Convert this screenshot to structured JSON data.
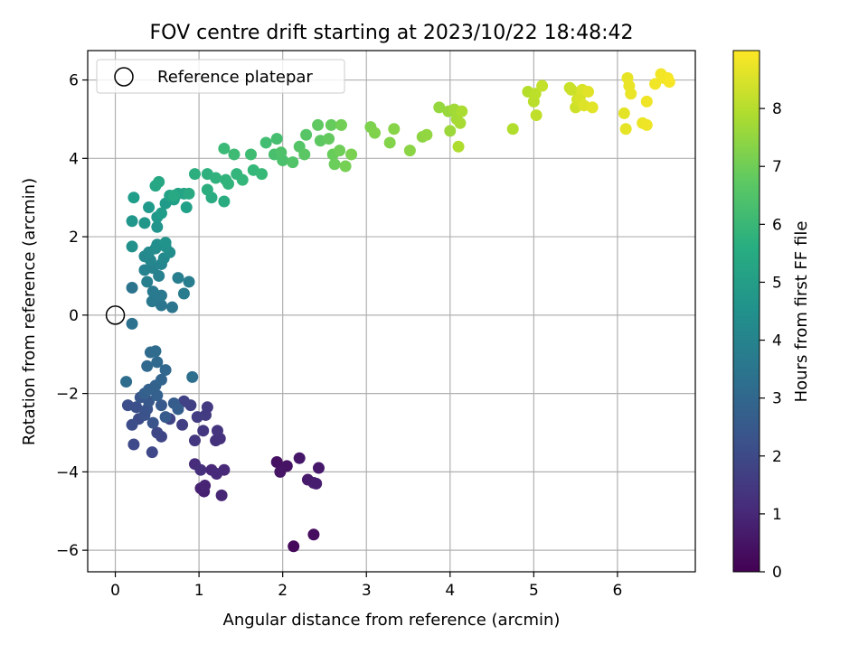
{
  "chart_data": {
    "type": "scatter",
    "title": "FOV centre drift starting at 2023/10/22 18:48:42",
    "xlabel": "Angular distance from reference (arcmin)",
    "ylabel": "Rotation from reference (arcmin)",
    "colorbar_label": "Hours from first FF file",
    "xlim": [
      -0.33,
      6.93
    ],
    "ylim": [
      -6.55,
      6.75
    ],
    "xticks": [
      0,
      1,
      2,
      3,
      4,
      5,
      6
    ],
    "yticks": [
      -6,
      -4,
      -2,
      0,
      2,
      4,
      6
    ],
    "colorbar_ticks": [
      0,
      1,
      2,
      3,
      4,
      5,
      6,
      7,
      8
    ],
    "colorbar_range": [
      0,
      9.0
    ],
    "colormap": "viridis",
    "grid": true,
    "legend": {
      "placement": "top-left",
      "entries": [
        {
          "label": "Reference platepar",
          "marker": "open-circle"
        }
      ]
    },
    "reference_point": {
      "x": 0,
      "y": 0
    },
    "points": [
      {
        "x": 2.13,
        "y": -5.9,
        "h": 0.2
      },
      {
        "x": 2.37,
        "y": -5.6,
        "h": 0.3
      },
      {
        "x": 1.93,
        "y": -3.75,
        "h": 0.4
      },
      {
        "x": 2.05,
        "y": -3.85,
        "h": 0.45
      },
      {
        "x": 1.97,
        "y": -4.0,
        "h": 0.5
      },
      {
        "x": 2.2,
        "y": -3.65,
        "h": 0.55
      },
      {
        "x": 2.43,
        "y": -3.9,
        "h": 0.6
      },
      {
        "x": 2.3,
        "y": -4.2,
        "h": 0.65
      },
      {
        "x": 2.37,
        "y": -4.28,
        "h": 0.7
      },
      {
        "x": 2.4,
        "y": -4.3,
        "h": 0.75
      },
      {
        "x": 1.06,
        "y": -4.5,
        "h": 0.8
      },
      {
        "x": 1.02,
        "y": -4.42,
        "h": 0.85
      },
      {
        "x": 1.07,
        "y": -4.35,
        "h": 0.9
      },
      {
        "x": 1.27,
        "y": -4.6,
        "h": 0.95
      },
      {
        "x": 1.15,
        "y": -3.95,
        "h": 1.0
      },
      {
        "x": 1.3,
        "y": -3.95,
        "h": 1.05
      },
      {
        "x": 1.21,
        "y": -4.05,
        "h": 1.1
      },
      {
        "x": 0.95,
        "y": -3.8,
        "h": 1.15
      },
      {
        "x": 1.02,
        "y": -3.95,
        "h": 1.2
      },
      {
        "x": 1.25,
        "y": -3.15,
        "h": 1.25
      },
      {
        "x": 1.2,
        "y": -3.2,
        "h": 1.3
      },
      {
        "x": 1.22,
        "y": -2.95,
        "h": 1.35
      },
      {
        "x": 0.95,
        "y": -3.2,
        "h": 1.4
      },
      {
        "x": 1.05,
        "y": -2.95,
        "h": 1.45
      },
      {
        "x": 1.1,
        "y": -2.35,
        "h": 1.5
      },
      {
        "x": 1.08,
        "y": -2.55,
        "h": 1.55
      },
      {
        "x": 0.98,
        "y": -2.6,
        "h": 1.6
      },
      {
        "x": 0.8,
        "y": -2.8,
        "h": 1.65
      },
      {
        "x": 0.9,
        "y": -2.3,
        "h": 1.7
      },
      {
        "x": 0.82,
        "y": -2.2,
        "h": 1.75
      },
      {
        "x": 0.65,
        "y": -2.65,
        "h": 1.8
      },
      {
        "x": 0.55,
        "y": -3.1,
        "h": 1.85
      },
      {
        "x": 0.5,
        "y": -3.0,
        "h": 1.9
      },
      {
        "x": 0.44,
        "y": -3.5,
        "h": 1.95
      },
      {
        "x": 0.22,
        "y": -3.3,
        "h": 2.0
      },
      {
        "x": 0.28,
        "y": -2.65,
        "h": 2.05
      },
      {
        "x": 0.2,
        "y": -2.8,
        "h": 2.1
      },
      {
        "x": 0.15,
        "y": -2.3,
        "h": 2.15
      },
      {
        "x": 0.25,
        "y": -2.35,
        "h": 2.2
      },
      {
        "x": 0.35,
        "y": -2.55,
        "h": 2.25
      },
      {
        "x": 0.38,
        "y": -2.4,
        "h": 2.3
      },
      {
        "x": 0.45,
        "y": -2.75,
        "h": 2.35
      },
      {
        "x": 0.3,
        "y": -2.1,
        "h": 2.4
      },
      {
        "x": 0.4,
        "y": -2.2,
        "h": 2.45
      },
      {
        "x": 0.55,
        "y": -2.3,
        "h": 2.5
      },
      {
        "x": 0.6,
        "y": -2.6,
        "h": 2.55
      },
      {
        "x": 0.7,
        "y": -2.25,
        "h": 2.6
      },
      {
        "x": 0.75,
        "y": -2.4,
        "h": 2.65
      },
      {
        "x": 0.35,
        "y": -2.0,
        "h": 2.7
      },
      {
        "x": 0.5,
        "y": -2.05,
        "h": 2.75
      },
      {
        "x": 0.4,
        "y": -1.9,
        "h": 2.8
      },
      {
        "x": 0.48,
        "y": -1.8,
        "h": 2.85
      },
      {
        "x": 0.55,
        "y": -1.65,
        "h": 2.9
      },
      {
        "x": 0.6,
        "y": -1.4,
        "h": 2.95
      },
      {
        "x": 0.38,
        "y": -1.3,
        "h": 3.0
      },
      {
        "x": 0.5,
        "y": -1.2,
        "h": 3.05
      },
      {
        "x": 0.42,
        "y": -0.95,
        "h": 3.1
      },
      {
        "x": 0.48,
        "y": -0.92,
        "h": 3.15
      },
      {
        "x": 0.13,
        "y": -1.7,
        "h": 3.2
      },
      {
        "x": 0.92,
        "y": -1.58,
        "h": 3.25
      },
      {
        "x": 0.2,
        "y": -0.22,
        "h": 3.35
      },
      {
        "x": 0.2,
        "y": 0.7,
        "h": 3.45
      },
      {
        "x": 0.68,
        "y": 0.2,
        "h": 3.5
      },
      {
        "x": 0.55,
        "y": 0.25,
        "h": 3.55
      },
      {
        "x": 0.44,
        "y": 0.35,
        "h": 3.6
      },
      {
        "x": 0.55,
        "y": 0.5,
        "h": 3.65
      },
      {
        "x": 0.45,
        "y": 0.6,
        "h": 3.7
      },
      {
        "x": 0.82,
        "y": 0.55,
        "h": 3.75
      },
      {
        "x": 0.88,
        "y": 0.85,
        "h": 3.8
      },
      {
        "x": 0.75,
        "y": 0.95,
        "h": 3.85
      },
      {
        "x": 0.38,
        "y": 0.85,
        "h": 3.9
      },
      {
        "x": 0.52,
        "y": 1.0,
        "h": 3.95
      },
      {
        "x": 0.35,
        "y": 1.15,
        "h": 4.0
      },
      {
        "x": 0.45,
        "y": 1.2,
        "h": 4.05
      },
      {
        "x": 0.55,
        "y": 1.3,
        "h": 4.1
      },
      {
        "x": 0.42,
        "y": 1.4,
        "h": 4.15
      },
      {
        "x": 0.35,
        "y": 1.5,
        "h": 4.2
      },
      {
        "x": 0.58,
        "y": 1.45,
        "h": 4.25
      },
      {
        "x": 0.4,
        "y": 1.6,
        "h": 4.3
      },
      {
        "x": 0.48,
        "y": 1.7,
        "h": 4.35
      },
      {
        "x": 0.65,
        "y": 1.6,
        "h": 4.4
      },
      {
        "x": 0.5,
        "y": 1.8,
        "h": 4.45
      },
      {
        "x": 0.6,
        "y": 1.75,
        "h": 4.5
      },
      {
        "x": 0.2,
        "y": 1.75,
        "h": 4.55
      },
      {
        "x": 0.6,
        "y": 1.85,
        "h": 4.6
      },
      {
        "x": 0.5,
        "y": 2.25,
        "h": 4.65
      },
      {
        "x": 0.2,
        "y": 2.4,
        "h": 4.7
      },
      {
        "x": 0.35,
        "y": 2.35,
        "h": 4.75
      },
      {
        "x": 0.5,
        "y": 2.5,
        "h": 4.8
      },
      {
        "x": 0.4,
        "y": 2.75,
        "h": 4.85
      },
      {
        "x": 0.6,
        "y": 2.85,
        "h": 4.9
      },
      {
        "x": 0.55,
        "y": 2.6,
        "h": 4.95
      },
      {
        "x": 0.22,
        "y": 3.0,
        "h": 5.0
      },
      {
        "x": 0.7,
        "y": 2.95,
        "h": 5.05
      },
      {
        "x": 0.85,
        "y": 2.75,
        "h": 5.1
      },
      {
        "x": 0.65,
        "y": 3.05,
        "h": 5.15
      },
      {
        "x": 0.75,
        "y": 3.1,
        "h": 5.2
      },
      {
        "x": 0.82,
        "y": 3.1,
        "h": 5.25
      },
      {
        "x": 0.48,
        "y": 3.3,
        "h": 5.3
      },
      {
        "x": 0.52,
        "y": 3.4,
        "h": 5.35
      },
      {
        "x": 0.7,
        "y": 3.05,
        "h": 5.4
      },
      {
        "x": 0.88,
        "y": 3.1,
        "h": 5.45
      },
      {
        "x": 1.15,
        "y": 3.0,
        "h": 5.5
      },
      {
        "x": 1.3,
        "y": 2.9,
        "h": 5.55
      },
      {
        "x": 1.1,
        "y": 3.2,
        "h": 5.6
      },
      {
        "x": 0.95,
        "y": 3.6,
        "h": 5.65
      },
      {
        "x": 1.1,
        "y": 3.6,
        "h": 5.7
      },
      {
        "x": 1.2,
        "y": 3.5,
        "h": 5.75
      },
      {
        "x": 1.32,
        "y": 3.45,
        "h": 5.8
      },
      {
        "x": 1.35,
        "y": 3.35,
        "h": 5.85
      },
      {
        "x": 1.45,
        "y": 3.6,
        "h": 5.9
      },
      {
        "x": 1.52,
        "y": 3.45,
        "h": 5.95
      },
      {
        "x": 1.65,
        "y": 3.7,
        "h": 6.0
      },
      {
        "x": 1.75,
        "y": 3.6,
        "h": 6.05
      },
      {
        "x": 1.3,
        "y": 4.25,
        "h": 6.1
      },
      {
        "x": 1.42,
        "y": 4.1,
        "h": 6.15
      },
      {
        "x": 1.62,
        "y": 4.1,
        "h": 6.2
      },
      {
        "x": 1.8,
        "y": 4.4,
        "h": 6.25
      },
      {
        "x": 1.93,
        "y": 4.5,
        "h": 6.3
      },
      {
        "x": 1.9,
        "y": 4.1,
        "h": 6.35
      },
      {
        "x": 2.0,
        "y": 3.95,
        "h": 6.4
      },
      {
        "x": 1.98,
        "y": 4.15,
        "h": 6.45
      },
      {
        "x": 2.12,
        "y": 3.9,
        "h": 6.5
      },
      {
        "x": 2.2,
        "y": 4.3,
        "h": 6.55
      },
      {
        "x": 2.28,
        "y": 4.6,
        "h": 6.6
      },
      {
        "x": 2.26,
        "y": 4.1,
        "h": 6.65
      },
      {
        "x": 2.45,
        "y": 4.45,
        "h": 6.7
      },
      {
        "x": 2.42,
        "y": 4.85,
        "h": 6.75
      },
      {
        "x": 2.55,
        "y": 4.5,
        "h": 6.8
      },
      {
        "x": 2.58,
        "y": 4.85,
        "h": 6.85
      },
      {
        "x": 2.6,
        "y": 4.1,
        "h": 6.9
      },
      {
        "x": 2.62,
        "y": 3.85,
        "h": 6.95
      },
      {
        "x": 2.68,
        "y": 4.2,
        "h": 7.0
      },
      {
        "x": 2.7,
        "y": 4.85,
        "h": 7.05
      },
      {
        "x": 2.75,
        "y": 3.8,
        "h": 7.1
      },
      {
        "x": 2.82,
        "y": 4.1,
        "h": 7.15
      },
      {
        "x": 3.05,
        "y": 4.8,
        "h": 7.2
      },
      {
        "x": 3.1,
        "y": 4.65,
        "h": 7.25
      },
      {
        "x": 3.28,
        "y": 4.4,
        "h": 7.3
      },
      {
        "x": 3.33,
        "y": 4.75,
        "h": 7.35
      },
      {
        "x": 3.52,
        "y": 4.2,
        "h": 7.4
      },
      {
        "x": 3.67,
        "y": 4.55,
        "h": 7.45
      },
      {
        "x": 3.72,
        "y": 4.6,
        "h": 7.5
      },
      {
        "x": 3.87,
        "y": 5.3,
        "h": 7.55
      },
      {
        "x": 3.98,
        "y": 5.2,
        "h": 7.6
      },
      {
        "x": 4.0,
        "y": 4.7,
        "h": 7.65
      },
      {
        "x": 4.05,
        "y": 5.25,
        "h": 7.7
      },
      {
        "x": 4.08,
        "y": 5.0,
        "h": 7.75
      },
      {
        "x": 4.12,
        "y": 4.9,
        "h": 7.8
      },
      {
        "x": 4.14,
        "y": 5.2,
        "h": 7.85
      },
      {
        "x": 4.1,
        "y": 4.3,
        "h": 7.9
      },
      {
        "x": 4.75,
        "y": 4.75,
        "h": 7.95
      },
      {
        "x": 4.93,
        "y": 5.7,
        "h": 8.0
      },
      {
        "x": 5.0,
        "y": 5.45,
        "h": 8.05
      },
      {
        "x": 5.02,
        "y": 5.65,
        "h": 8.1
      },
      {
        "x": 5.03,
        "y": 5.1,
        "h": 8.15
      },
      {
        "x": 5.1,
        "y": 5.85,
        "h": 8.2
      },
      {
        "x": 5.43,
        "y": 5.8,
        "h": 8.25
      },
      {
        "x": 5.45,
        "y": 5.75,
        "h": 8.3
      },
      {
        "x": 5.5,
        "y": 5.3,
        "h": 8.35
      },
      {
        "x": 5.52,
        "y": 5.5,
        "h": 8.4
      },
      {
        "x": 5.55,
        "y": 5.55,
        "h": 8.45
      },
      {
        "x": 5.58,
        "y": 5.75,
        "h": 8.5
      },
      {
        "x": 5.6,
        "y": 5.35,
        "h": 8.55
      },
      {
        "x": 5.65,
        "y": 5.7,
        "h": 8.6
      },
      {
        "x": 5.7,
        "y": 5.3,
        "h": 8.62
      },
      {
        "x": 6.08,
        "y": 5.15,
        "h": 8.65
      },
      {
        "x": 6.1,
        "y": 4.75,
        "h": 8.68
      },
      {
        "x": 6.12,
        "y": 6.05,
        "h": 8.7
      },
      {
        "x": 6.14,
        "y": 5.85,
        "h": 8.72
      },
      {
        "x": 6.16,
        "y": 5.65,
        "h": 8.74
      },
      {
        "x": 6.3,
        "y": 4.9,
        "h": 8.76
      },
      {
        "x": 6.35,
        "y": 4.85,
        "h": 8.78
      },
      {
        "x": 6.35,
        "y": 5.45,
        "h": 8.8
      },
      {
        "x": 6.45,
        "y": 5.9,
        "h": 8.82
      },
      {
        "x": 6.52,
        "y": 6.15,
        "h": 8.84
      },
      {
        "x": 6.55,
        "y": 6.05,
        "h": 8.86
      },
      {
        "x": 6.6,
        "y": 6.05,
        "h": 8.88
      },
      {
        "x": 6.62,
        "y": 5.95,
        "h": 8.9
      }
    ]
  }
}
